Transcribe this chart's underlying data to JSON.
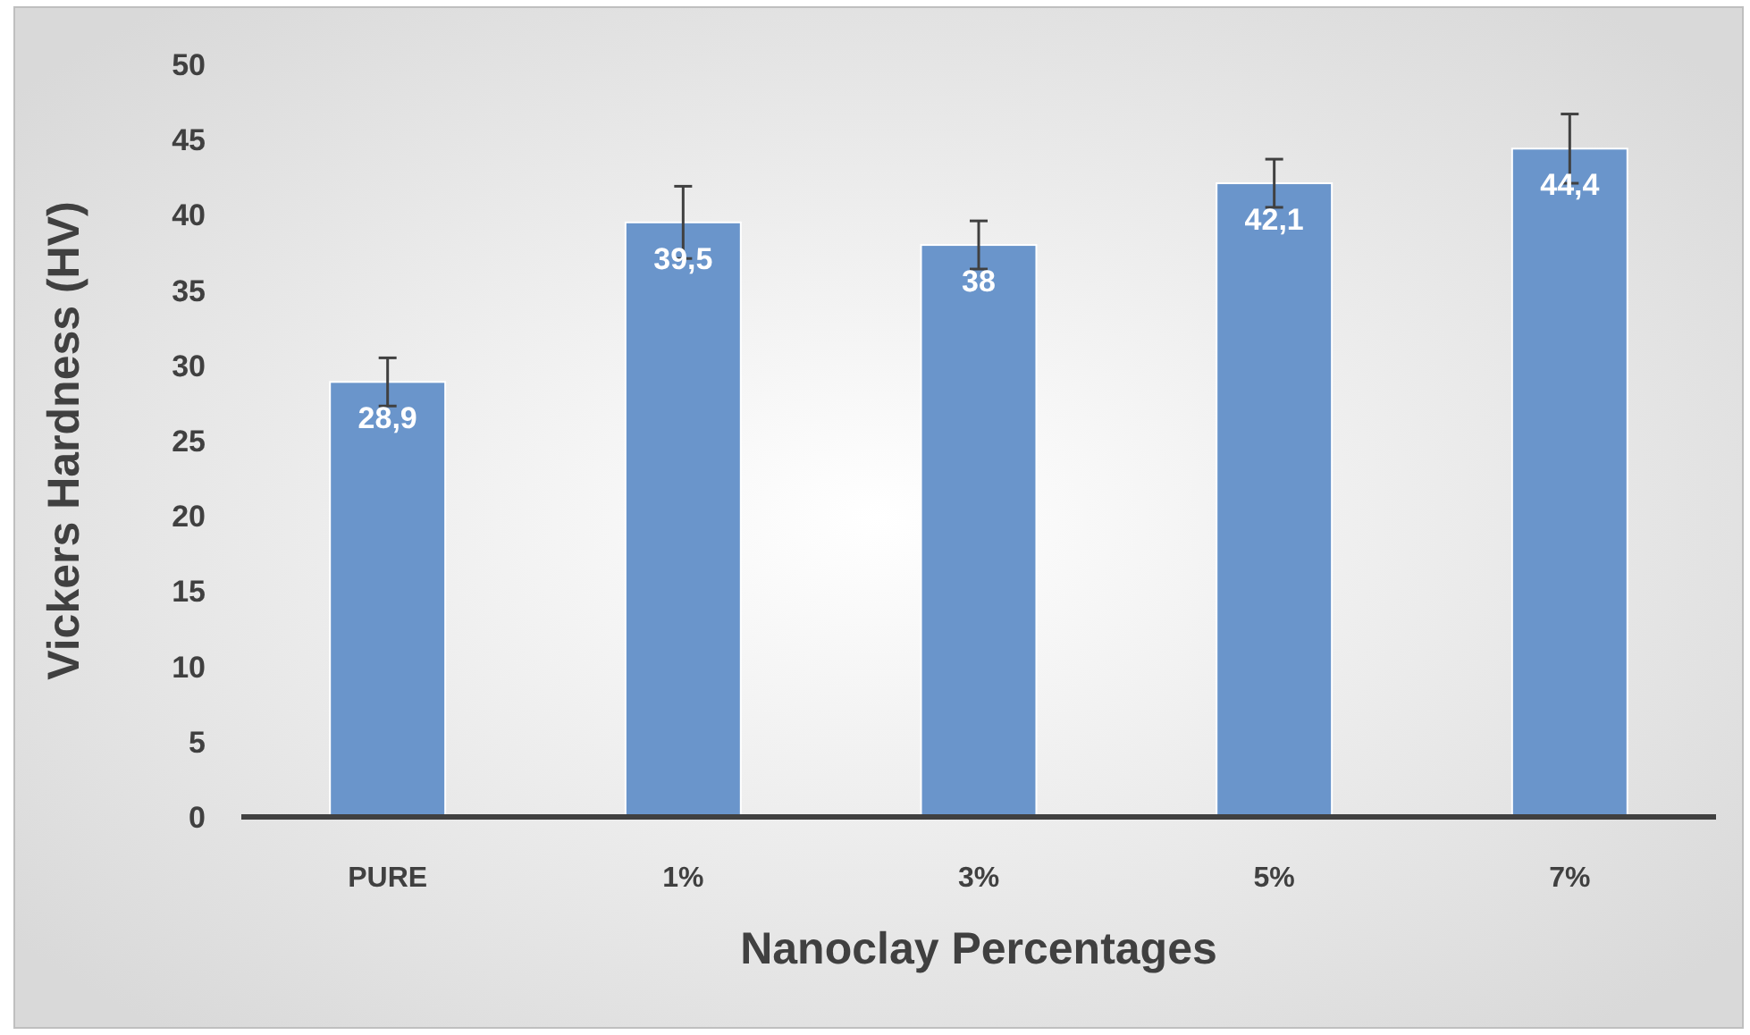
{
  "chart_data": {
    "type": "bar",
    "xlabel": "Nanoclay Percentages",
    "ylabel": "Vickers Hardness (HV)",
    "categories": [
      "PURE",
      "1%",
      "3%",
      "5%",
      "7%"
    ],
    "values": [
      28.9,
      39.5,
      38,
      42.1,
      44.4
    ],
    "value_labels": [
      "28,9",
      "39,5",
      "38",
      "42,1",
      "44,4"
    ],
    "errors": [
      1.6,
      2.4,
      1.6,
      1.6,
      2.3
    ],
    "color": "#6a95cb",
    "ylim": [
      0,
      50
    ],
    "yticks": [
      0,
      5,
      10,
      15,
      20,
      25,
      30,
      35,
      40,
      45,
      50
    ],
    "grid": false
  }
}
